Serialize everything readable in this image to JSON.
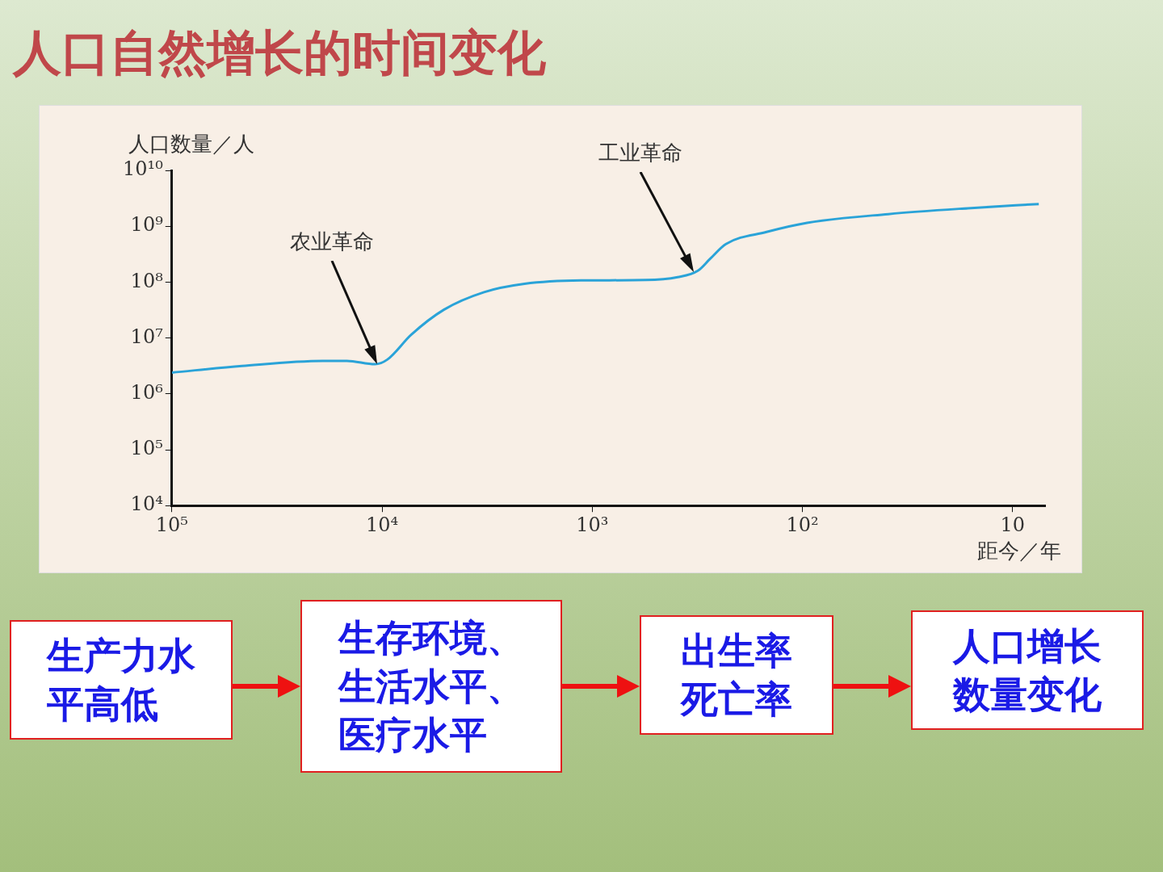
{
  "chart_data": {
    "type": "line",
    "title": "人口自然增长的时间变化",
    "ylabel": "人口数量／人",
    "xlabel": "距今／年",
    "x": [
      100000,
      46400,
      19100,
      14700,
      10800,
      9440,
      7250,
      5080,
      3270,
      2100,
      1130,
      558,
      392,
      314,
      275,
      231,
      148,
      95,
      39,
      16.3,
      7.5
    ],
    "series": [
      {
        "color": "#2aa3d8",
        "values": [
          2400000,
          3160000,
          3900000,
          3900000,
          3400000,
          4100000,
          11500000,
          32000000,
          66000000,
          93000000,
          107000000,
          109000000,
          123000000,
          160000000,
          260000000,
          480000000,
          790000000,
          1150000000,
          1650000000,
          2100000000,
          2500000000
        ]
      }
    ],
    "xlim": [
      100000,
      7
    ],
    "xticks": [
      {
        "value": 100000,
        "label": "10⁵"
      },
      {
        "value": 10000,
        "label": "10⁴"
      },
      {
        "value": 1000,
        "label": "10³"
      },
      {
        "value": 100,
        "label": "10²"
      },
      10
    ],
    "ylim": [
      10000,
      10000000000
    ],
    "yticks": [
      {
        "value": 10000,
        "label": "10⁴"
      },
      {
        "value": 100000,
        "label": "10⁵"
      },
      {
        "value": 1000000,
        "label": "10⁶"
      },
      {
        "value": 10000000,
        "label": "10⁷"
      },
      {
        "value": 100000000,
        "label": "10⁸"
      },
      {
        "value": 1000000000,
        "label": "10⁹"
      },
      {
        "value": 10000000000,
        "label": "10¹⁰"
      }
    ],
    "log": "xy",
    "grid": false,
    "legend": false,
    "marker": "none",
    "line_style": "solid",
    "annotations": [
      "农业革命",
      "工业革命",
      "生产力水平高低",
      "生存环境、生活水平、医疗水平",
      "出生率死亡率",
      "人口增长数量变化"
    ]
  }
}
